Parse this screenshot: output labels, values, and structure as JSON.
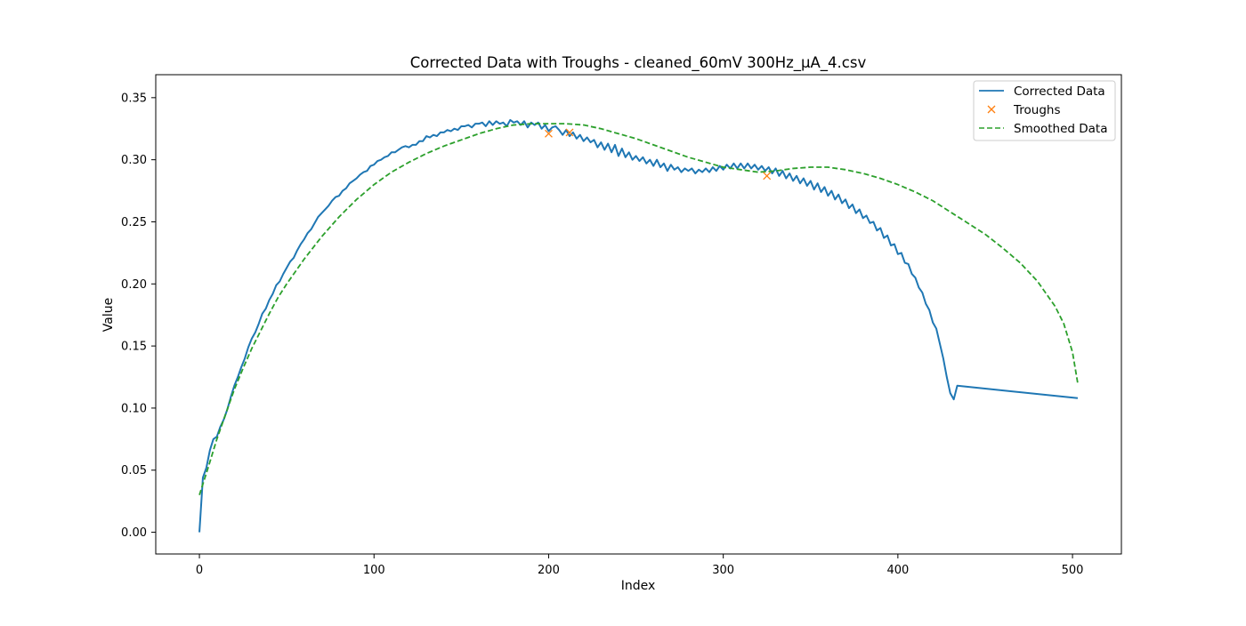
{
  "chart_data": {
    "type": "line",
    "title": "Corrected Data with Troughs - cleaned_60mV 300Hz_µA_4.csv",
    "xlabel": "Index",
    "ylabel": "Value",
    "xlim": [
      -25,
      528
    ],
    "ylim": [
      -0.0175,
      0.3685
    ],
    "xticks": [
      "0",
      "100",
      "200",
      "300",
      "400",
      "500"
    ],
    "yticks": [
      "0.00",
      "0.05",
      "0.10",
      "0.15",
      "0.20",
      "0.25",
      "0.30",
      "0.35"
    ],
    "grid": false,
    "legend_position": "top-right",
    "series": [
      {
        "name": "Corrected Data",
        "kind": "line",
        "color": "#1f77b4",
        "x_start": 0,
        "x_step": 2,
        "values": [
          0.0,
          0.044,
          0.052,
          0.066,
          0.075,
          0.077,
          0.085,
          0.091,
          0.099,
          0.109,
          0.118,
          0.125,
          0.133,
          0.14,
          0.149,
          0.156,
          0.161,
          0.168,
          0.176,
          0.18,
          0.187,
          0.192,
          0.199,
          0.202,
          0.208,
          0.213,
          0.218,
          0.221,
          0.227,
          0.232,
          0.236,
          0.241,
          0.244,
          0.249,
          0.254,
          0.257,
          0.26,
          0.263,
          0.267,
          0.27,
          0.271,
          0.275,
          0.277,
          0.281,
          0.283,
          0.285,
          0.288,
          0.29,
          0.291,
          0.295,
          0.296,
          0.299,
          0.3,
          0.302,
          0.303,
          0.306,
          0.306,
          0.308,
          0.31,
          0.311,
          0.31,
          0.312,
          0.312,
          0.315,
          0.315,
          0.319,
          0.318,
          0.32,
          0.319,
          0.322,
          0.322,
          0.324,
          0.323,
          0.325,
          0.324,
          0.327,
          0.327,
          0.328,
          0.326,
          0.329,
          0.329,
          0.33,
          0.327,
          0.331,
          0.328,
          0.331,
          0.329,
          0.33,
          0.327,
          0.332,
          0.33,
          0.331,
          0.328,
          0.331,
          0.326,
          0.33,
          0.328,
          0.33,
          0.325,
          0.328,
          0.323,
          0.326,
          0.327,
          0.324,
          0.32,
          0.324,
          0.319,
          0.322,
          0.317,
          0.32,
          0.315,
          0.318,
          0.314,
          0.316,
          0.31,
          0.314,
          0.308,
          0.313,
          0.306,
          0.312,
          0.303,
          0.309,
          0.302,
          0.306,
          0.3,
          0.303,
          0.299,
          0.302,
          0.297,
          0.3,
          0.295,
          0.3,
          0.294,
          0.297,
          0.291,
          0.296,
          0.292,
          0.294,
          0.29,
          0.293,
          0.291,
          0.293,
          0.289,
          0.292,
          0.29,
          0.293,
          0.29,
          0.294,
          0.291,
          0.295,
          0.292,
          0.296,
          0.293,
          0.297,
          0.293,
          0.297,
          0.293,
          0.297,
          0.293,
          0.296,
          0.292,
          0.295,
          0.291,
          0.294,
          0.289,
          0.293,
          0.287,
          0.291,
          0.285,
          0.289,
          0.283,
          0.287,
          0.281,
          0.285,
          0.279,
          0.283,
          0.276,
          0.281,
          0.274,
          0.278,
          0.271,
          0.275,
          0.268,
          0.272,
          0.265,
          0.268,
          0.261,
          0.264,
          0.257,
          0.26,
          0.253,
          0.255,
          0.249,
          0.25,
          0.243,
          0.245,
          0.237,
          0.239,
          0.231,
          0.232,
          0.224,
          0.225,
          0.217,
          0.216,
          0.208,
          0.205,
          0.197,
          0.193,
          0.184,
          0.179,
          0.169,
          0.164,
          0.152,
          0.14,
          0.125,
          0.112,
          0.107,
          0.118,
          0.108
        ],
        "x_end_override": 503
      },
      {
        "name": "Troughs",
        "kind": "scatter",
        "marker": "x",
        "color": "#ff7f0e",
        "points": [
          [
            200,
            0.321
          ],
          [
            212,
            0.322
          ],
          [
            325,
            0.287
          ]
        ]
      },
      {
        "name": "Smoothed Data",
        "kind": "dashed-line",
        "color": "#2ca02c",
        "points": [
          [
            0,
            0.03
          ],
          [
            5,
            0.052
          ],
          [
            10,
            0.075
          ],
          [
            15,
            0.095
          ],
          [
            20,
            0.115
          ],
          [
            25,
            0.132
          ],
          [
            30,
            0.148
          ],
          [
            35,
            0.162
          ],
          [
            40,
            0.176
          ],
          [
            45,
            0.189
          ],
          [
            50,
            0.2
          ],
          [
            55,
            0.21
          ],
          [
            60,
            0.22
          ],
          [
            65,
            0.229
          ],
          [
            70,
            0.238
          ],
          [
            75,
            0.246
          ],
          [
            80,
            0.254
          ],
          [
            85,
            0.261
          ],
          [
            90,
            0.268
          ],
          [
            95,
            0.274
          ],
          [
            100,
            0.28
          ],
          [
            110,
            0.29
          ],
          [
            120,
            0.298
          ],
          [
            130,
            0.305
          ],
          [
            140,
            0.311
          ],
          [
            150,
            0.316
          ],
          [
            160,
            0.321
          ],
          [
            170,
            0.325
          ],
          [
            180,
            0.328
          ],
          [
            190,
            0.329
          ],
          [
            200,
            0.329
          ],
          [
            210,
            0.329
          ],
          [
            220,
            0.328
          ],
          [
            230,
            0.325
          ],
          [
            240,
            0.321
          ],
          [
            250,
            0.317
          ],
          [
            260,
            0.312
          ],
          [
            270,
            0.307
          ],
          [
            280,
            0.302
          ],
          [
            290,
            0.298
          ],
          [
            300,
            0.294
          ],
          [
            310,
            0.292
          ],
          [
            320,
            0.29
          ],
          [
            330,
            0.291
          ],
          [
            340,
            0.293
          ],
          [
            350,
            0.294
          ],
          [
            360,
            0.294
          ],
          [
            370,
            0.292
          ],
          [
            380,
            0.289
          ],
          [
            390,
            0.285
          ],
          [
            400,
            0.28
          ],
          [
            410,
            0.274
          ],
          [
            420,
            0.267
          ],
          [
            430,
            0.258
          ],
          [
            440,
            0.249
          ],
          [
            450,
            0.24
          ],
          [
            460,
            0.229
          ],
          [
            470,
            0.217
          ],
          [
            480,
            0.202
          ],
          [
            490,
            0.182
          ],
          [
            495,
            0.168
          ],
          [
            500,
            0.145
          ],
          [
            503,
            0.12
          ]
        ]
      }
    ]
  }
}
